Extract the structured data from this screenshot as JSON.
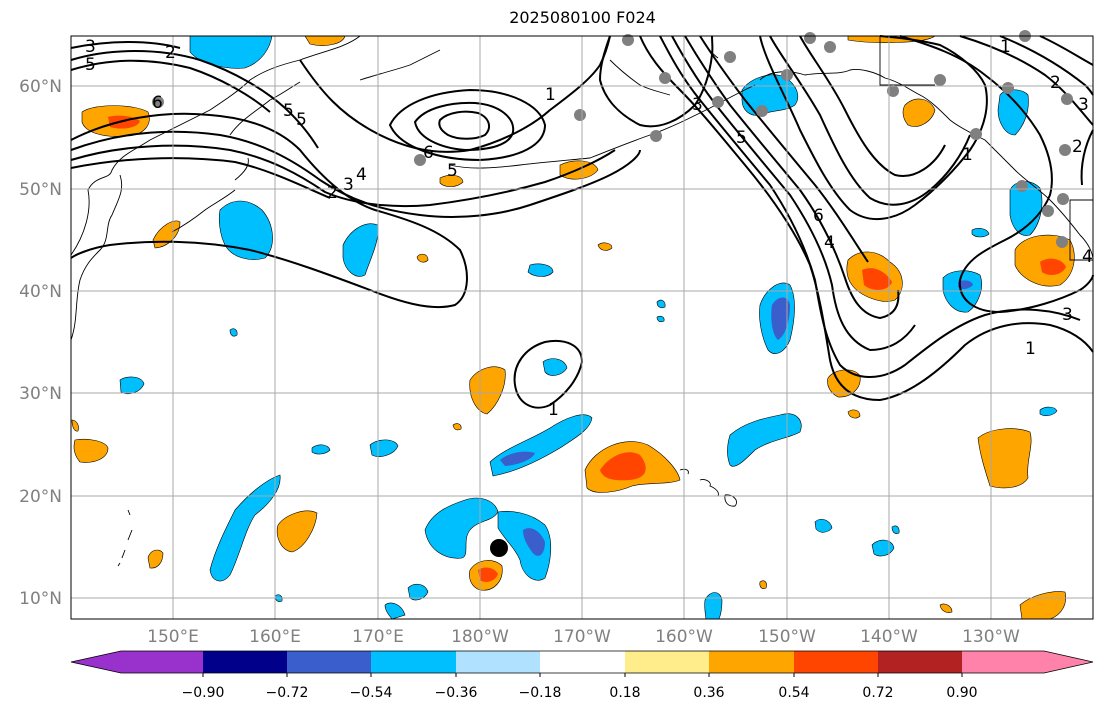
{
  "title": "2025080100 F024",
  "lon_labels": [
    "150°E",
    "160°E",
    "170°E",
    "180°W",
    "170°W",
    "160°W",
    "150°W",
    "140°W",
    "130°W"
  ],
  "lat_labels": [
    "60°N",
    "50°N",
    "40°N",
    "30°N",
    "20°N",
    "10°N"
  ],
  "colorbar": {
    "tick_labels": [
      "−0.90",
      "−0.72",
      "−0.54",
      "−0.36",
      "−0.18",
      "0.18",
      "0.36",
      "0.54",
      "0.72",
      "0.90"
    ],
    "colors": [
      "#9932cc",
      "#00008b",
      "#3a5fcd",
      "#00bfff",
      "#b0e2ff",
      "#ffffff",
      "#ffec8b",
      "#ffa500",
      "#ff4500",
      "#b22222",
      "#ff82ab"
    ]
  },
  "contour_labels": [
    "3",
    "2",
    "5",
    "6",
    "5",
    "5",
    "4",
    "3",
    "2",
    "6",
    "5",
    "1",
    "1",
    "3",
    "5",
    "6",
    "4",
    "1",
    "2",
    "3",
    "2",
    "4",
    "1",
    "3",
    "1"
  ],
  "colors": {
    "grid": "#a8a8a8",
    "land_stations": "#808080",
    "positive": "#ffa500",
    "strong_positive": "#ff4500",
    "negative": "#00bfff",
    "strong_negative": "#3a5fcd"
  }
}
